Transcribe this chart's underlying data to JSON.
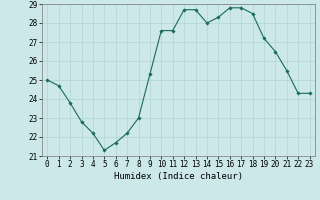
{
  "x": [
    0,
    1,
    2,
    3,
    4,
    5,
    6,
    7,
    8,
    9,
    10,
    11,
    12,
    13,
    14,
    15,
    16,
    17,
    18,
    19,
    20,
    21,
    22,
    23
  ],
  "y": [
    25.0,
    24.7,
    23.8,
    22.8,
    22.2,
    21.3,
    21.7,
    22.2,
    23.0,
    25.3,
    27.6,
    27.6,
    28.7,
    28.7,
    28.0,
    28.3,
    28.8,
    28.8,
    28.5,
    27.2,
    26.5,
    25.5,
    24.3,
    24.3
  ],
  "line_color": "#1a6b5a",
  "marker": "D",
  "marker_size": 1.8,
  "bg_color": "#cce8e8",
  "grid_color": "#b0d4d4",
  "xlabel": "Humidex (Indice chaleur)",
  "xlim": [
    -0.5,
    23.5
  ],
  "ylim": [
    21.0,
    29.0
  ],
  "yticks": [
    21,
    22,
    23,
    24,
    25,
    26,
    27,
    28,
    29
  ],
  "xticks": [
    0,
    1,
    2,
    3,
    4,
    5,
    6,
    7,
    8,
    9,
    10,
    11,
    12,
    13,
    14,
    15,
    16,
    17,
    18,
    19,
    20,
    21,
    22,
    23
  ],
  "xlabel_fontsize": 6.5,
  "tick_fontsize": 5.5
}
